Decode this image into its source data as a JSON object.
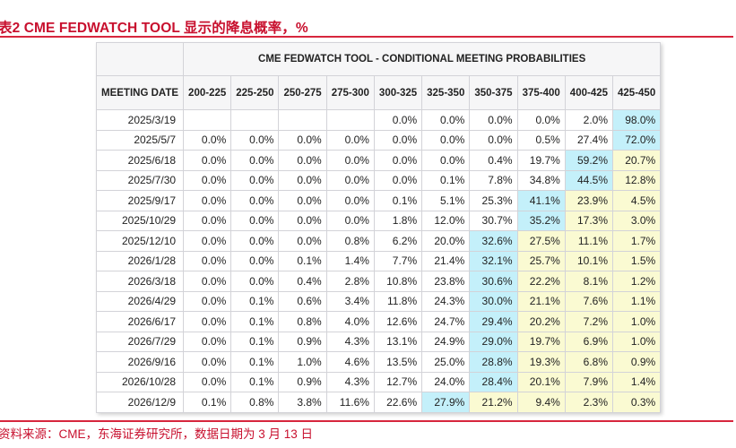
{
  "figure": {
    "title": "表2  CME FEDWATCH TOOL 显示的降息概率，%",
    "source": "资料来源：CME，东海证券研究所，数据日期为 3 月 13 日"
  },
  "colors": {
    "title_red": "#c8102e",
    "rule_red": "#d7263d",
    "highlight_blue": "#c4f0fa",
    "highlight_yellow": "#fafad2",
    "header_bg": "#f6f6f7"
  },
  "table": {
    "caption": "CME FEDWATCH TOOL - CONDITIONAL MEETING PROBABILITIES",
    "date_header": "MEETING DATE",
    "columns": [
      "200-225",
      "225-250",
      "250-275",
      "275-300",
      "300-325",
      "325-350",
      "350-375",
      "375-400",
      "400-425",
      "425-450"
    ],
    "rows": [
      {
        "date": "2025/3/19",
        "values": [
          "",
          "",
          "",
          "",
          "0.0%",
          "0.0%",
          "0.0%",
          "0.0%",
          "2.0%",
          "98.0%"
        ],
        "styles": [
          "",
          "",
          "",
          "",
          "",
          "",
          "",
          "",
          "",
          "blue"
        ]
      },
      {
        "date": "2025/5/7",
        "values": [
          "0.0%",
          "0.0%",
          "0.0%",
          "0.0%",
          "0.0%",
          "0.0%",
          "0.0%",
          "0.5%",
          "27.4%",
          "72.0%"
        ],
        "styles": [
          "",
          "",
          "",
          "",
          "",
          "",
          "",
          "",
          "",
          "blue"
        ]
      },
      {
        "date": "2025/6/18",
        "values": [
          "0.0%",
          "0.0%",
          "0.0%",
          "0.0%",
          "0.0%",
          "0.0%",
          "0.4%",
          "19.7%",
          "59.2%",
          "20.7%"
        ],
        "styles": [
          "",
          "",
          "",
          "",
          "",
          "",
          "",
          "",
          "blue",
          "yellow"
        ]
      },
      {
        "date": "2025/7/30",
        "values": [
          "0.0%",
          "0.0%",
          "0.0%",
          "0.0%",
          "0.0%",
          "0.1%",
          "7.8%",
          "34.8%",
          "44.5%",
          "12.8%"
        ],
        "styles": [
          "",
          "",
          "",
          "",
          "",
          "",
          "",
          "",
          "blue",
          "yellow"
        ]
      },
      {
        "date": "2025/9/17",
        "values": [
          "0.0%",
          "0.0%",
          "0.0%",
          "0.0%",
          "0.1%",
          "5.1%",
          "25.3%",
          "41.1%",
          "23.9%",
          "4.5%"
        ],
        "styles": [
          "",
          "",
          "",
          "",
          "",
          "",
          "",
          "blue",
          "yellow",
          "yellow"
        ]
      },
      {
        "date": "2025/10/29",
        "values": [
          "0.0%",
          "0.0%",
          "0.0%",
          "0.0%",
          "1.8%",
          "12.0%",
          "30.7%",
          "35.2%",
          "17.3%",
          "3.0%"
        ],
        "styles": [
          "",
          "",
          "",
          "",
          "",
          "",
          "",
          "blue",
          "yellow",
          "yellow"
        ]
      },
      {
        "date": "2025/12/10",
        "values": [
          "0.0%",
          "0.0%",
          "0.0%",
          "0.8%",
          "6.2%",
          "20.0%",
          "32.6%",
          "27.5%",
          "11.1%",
          "1.7%"
        ],
        "styles": [
          "",
          "",
          "",
          "",
          "",
          "",
          "blue",
          "yellow",
          "yellow",
          "yellow"
        ]
      },
      {
        "date": "2026/1/28",
        "values": [
          "0.0%",
          "0.0%",
          "0.1%",
          "1.4%",
          "7.7%",
          "21.4%",
          "32.1%",
          "25.7%",
          "10.1%",
          "1.5%"
        ],
        "styles": [
          "",
          "",
          "",
          "",
          "",
          "",
          "blue",
          "yellow",
          "yellow",
          "yellow"
        ]
      },
      {
        "date": "2026/3/18",
        "values": [
          "0.0%",
          "0.0%",
          "0.4%",
          "2.8%",
          "10.8%",
          "23.8%",
          "30.6%",
          "22.2%",
          "8.1%",
          "1.2%"
        ],
        "styles": [
          "",
          "",
          "",
          "",
          "",
          "",
          "blue",
          "yellow",
          "yellow",
          "yellow"
        ]
      },
      {
        "date": "2026/4/29",
        "values": [
          "0.0%",
          "0.1%",
          "0.6%",
          "3.4%",
          "11.8%",
          "24.3%",
          "30.0%",
          "21.1%",
          "7.6%",
          "1.1%"
        ],
        "styles": [
          "",
          "",
          "",
          "",
          "",
          "",
          "blue",
          "yellow",
          "yellow",
          "yellow"
        ]
      },
      {
        "date": "2026/6/17",
        "values": [
          "0.0%",
          "0.1%",
          "0.8%",
          "4.0%",
          "12.6%",
          "24.7%",
          "29.4%",
          "20.2%",
          "7.2%",
          "1.0%"
        ],
        "styles": [
          "",
          "",
          "",
          "",
          "",
          "",
          "blue",
          "yellow",
          "yellow",
          "yellow"
        ]
      },
      {
        "date": "2026/7/29",
        "values": [
          "0.0%",
          "0.1%",
          "0.9%",
          "4.3%",
          "13.1%",
          "24.9%",
          "29.0%",
          "19.7%",
          "6.9%",
          "1.0%"
        ],
        "styles": [
          "",
          "",
          "",
          "",
          "",
          "",
          "blue",
          "yellow",
          "yellow",
          "yellow"
        ]
      },
      {
        "date": "2026/9/16",
        "values": [
          "0.0%",
          "0.1%",
          "1.0%",
          "4.6%",
          "13.5%",
          "25.0%",
          "28.8%",
          "19.3%",
          "6.8%",
          "0.9%"
        ],
        "styles": [
          "",
          "",
          "",
          "",
          "",
          "",
          "blue",
          "yellow",
          "yellow",
          "yellow"
        ]
      },
      {
        "date": "2026/10/28",
        "values": [
          "0.0%",
          "0.1%",
          "0.9%",
          "4.3%",
          "12.7%",
          "24.0%",
          "28.4%",
          "20.1%",
          "7.9%",
          "1.4%"
        ],
        "styles": [
          "",
          "",
          "",
          "",
          "",
          "",
          "blue",
          "yellow",
          "yellow",
          "yellow"
        ]
      },
      {
        "date": "2026/12/9",
        "values": [
          "0.1%",
          "0.8%",
          "3.8%",
          "11.6%",
          "22.6%",
          "27.9%",
          "21.2%",
          "9.4%",
          "2.3%",
          "0.3%"
        ],
        "styles": [
          "",
          "",
          "",
          "",
          "",
          "blue",
          "yellow",
          "yellow",
          "yellow",
          "yellow"
        ]
      }
    ]
  }
}
